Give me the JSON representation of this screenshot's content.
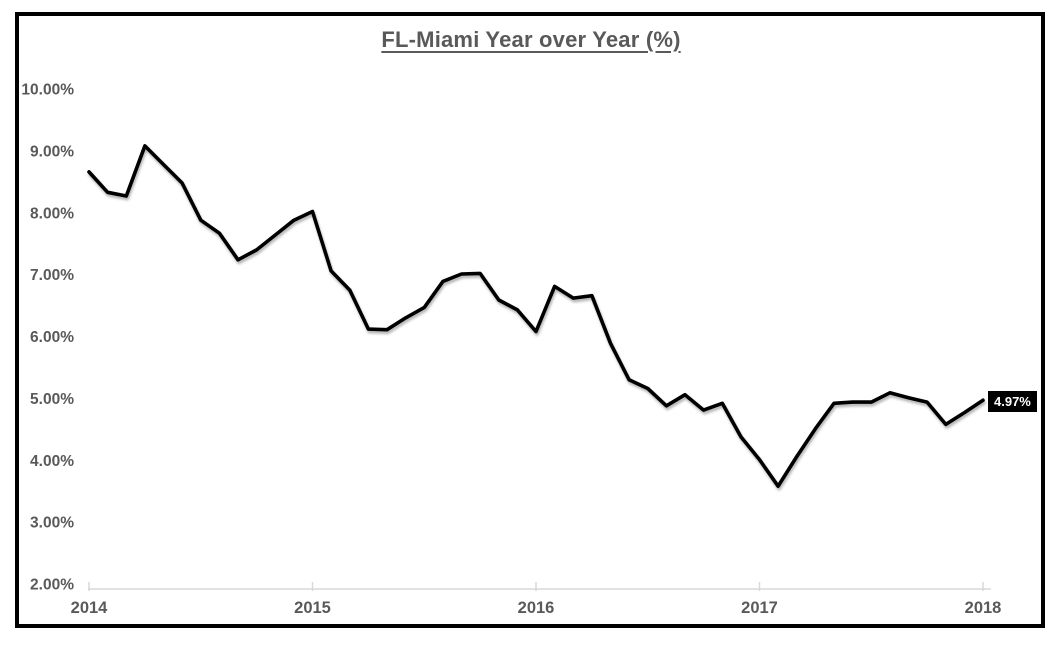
{
  "window": {
    "background": "#ffffff",
    "border_color": "#000000"
  },
  "chart_data": {
    "type": "line",
    "title": "FL-Miami Year over Year (%)",
    "xlabel": "",
    "ylabel": "",
    "ylim": [
      2,
      10
    ],
    "grid": false,
    "legend_position": "none",
    "y_tick_labels": [
      "10.00%",
      "9.00%",
      "8.00%",
      "7.00%",
      "6.00%",
      "5.00%",
      "4.00%",
      "3.00%",
      "2.00%"
    ],
    "x_tick_labels": [
      "2014",
      "2015",
      "2016",
      "2017",
      "2018"
    ],
    "x_tick_month_index": [
      0,
      12,
      24,
      36,
      48
    ],
    "x": [
      "2014-01",
      "2014-02",
      "2014-03",
      "2014-04",
      "2014-05",
      "2014-06",
      "2014-07",
      "2014-08",
      "2014-09",
      "2014-10",
      "2014-11",
      "2014-12",
      "2015-01",
      "2015-02",
      "2015-03",
      "2015-04",
      "2015-05",
      "2015-06",
      "2015-07",
      "2015-08",
      "2015-09",
      "2015-10",
      "2015-11",
      "2015-12",
      "2016-01",
      "2016-02",
      "2016-03",
      "2016-04",
      "2016-05",
      "2016-06",
      "2016-07",
      "2016-08",
      "2016-09",
      "2016-10",
      "2016-11",
      "2016-12",
      "2017-01",
      "2017-02",
      "2017-03",
      "2017-04",
      "2017-05",
      "2017-06",
      "2017-07",
      "2017-08",
      "2017-09",
      "2017-10",
      "2017-11",
      "2017-12",
      "2018-01"
    ],
    "series": [
      {
        "name": "FL-Miami Year over Year %",
        "values": [
          8.66,
          8.33,
          8.27,
          9.08,
          8.78,
          8.48,
          7.88,
          7.67,
          7.24,
          7.4,
          7.64,
          7.88,
          8.02,
          7.06,
          6.75,
          6.12,
          6.11,
          6.3,
          6.47,
          6.89,
          7.01,
          7.02,
          6.59,
          6.43,
          6.08,
          6.81,
          6.62,
          6.66,
          5.89,
          5.3,
          5.16,
          4.88,
          5.06,
          4.81,
          4.92,
          4.38,
          4.01,
          3.58,
          4.06,
          4.51,
          4.92,
          4.94,
          4.94,
          5.09,
          5.01,
          4.94,
          4.58,
          4.77,
          4.97
        ]
      }
    ],
    "end_label": "4.97%",
    "colors": {
      "line": "#000000",
      "axis": "#d9d9d9",
      "tick_text": "#595959",
      "title_text": "#595959",
      "end_label_bg": "#000000",
      "end_label_text": "#ffffff"
    }
  }
}
